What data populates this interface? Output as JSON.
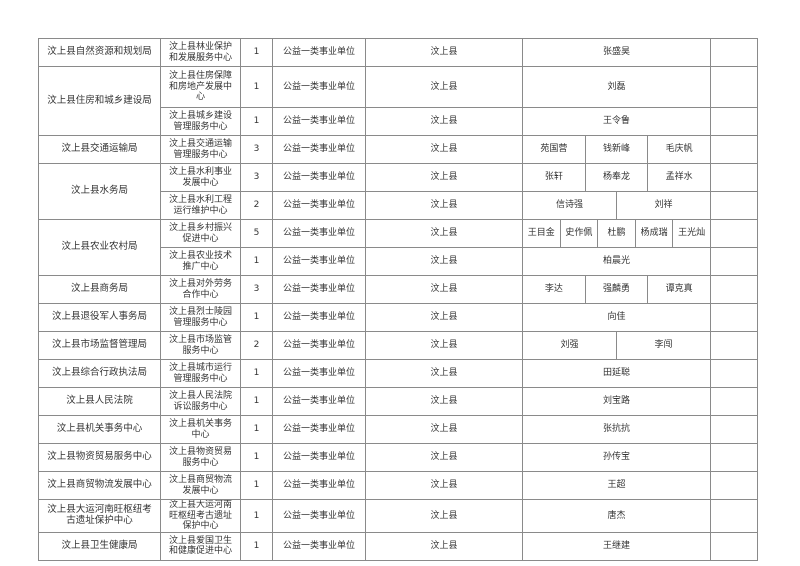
{
  "rows": [
    {
      "dept": "汶上县自然资源和规划局",
      "span": 1,
      "unit": "汶上县林业保护和发展服务中心",
      "count": "1",
      "type": "公益一类事业单位",
      "area": "汶上县",
      "names": [
        "张盛昊"
      ]
    },
    {
      "dept": "汶上县住房和城乡建设局",
      "span": 2,
      "unit": "汶上县住房保障和房地产发展中心",
      "count": "1",
      "type": "公益一类事业单位",
      "area": "汶上县",
      "names": [
        "刘磊"
      ],
      "tall": true
    },
    {
      "unit": "汶上县城乡建设管理服务中心",
      "count": "1",
      "type": "公益一类事业单位",
      "area": "汶上县",
      "names": [
        "王令鲁"
      ]
    },
    {
      "dept": "汶上县交通运输局",
      "span": 1,
      "unit": "汶上县交通运输管理服务中心",
      "count": "3",
      "type": "公益一类事业单位",
      "area": "汶上县",
      "names": [
        "苑国营",
        "钱新峰",
        "毛庆帆"
      ]
    },
    {
      "dept": "汶上县水务局",
      "span": 2,
      "unit": "汶上县水利事业发展中心",
      "count": "3",
      "type": "公益一类事业单位",
      "area": "汶上县",
      "names": [
        "张轩",
        "杨奉龙",
        "孟祥水"
      ]
    },
    {
      "unit": "汶上县水利工程运行维护中心",
      "count": "2",
      "type": "公益一类事业单位",
      "area": "汶上县",
      "names": [
        "信诗强",
        "刘祥"
      ]
    },
    {
      "dept": "汶上县农业农村局",
      "span": 2,
      "unit": "汶上县乡村振兴促进中心",
      "count": "5",
      "type": "公益一类事业单位",
      "area": "汶上县",
      "names": [
        "王目金",
        "史作佩",
        "杜鹏",
        "杨成瑞",
        "王光灿"
      ]
    },
    {
      "unit": "汶上县农业技术推广中心",
      "count": "1",
      "type": "公益一类事业单位",
      "area": "汶上县",
      "names": [
        "柏晨光"
      ]
    },
    {
      "dept": "汶上县商务局",
      "span": 1,
      "unit": "汶上县对外劳务合作中心",
      "count": "3",
      "type": "公益一类事业单位",
      "area": "汶上县",
      "names": [
        "李达",
        "强麟勇",
        "谭克真"
      ]
    },
    {
      "dept": "汶上县退役军人事务局",
      "span": 1,
      "unit": "汶上县烈士陵园管理服务中心",
      "count": "1",
      "type": "公益一类事业单位",
      "area": "汶上县",
      "names": [
        "向佳"
      ]
    },
    {
      "dept": "汶上县市场监督管理局",
      "span": 1,
      "unit": "汶上县市场监管服务中心",
      "count": "2",
      "type": "公益一类事业单位",
      "area": "汶上县",
      "names": [
        "刘强",
        "李闯"
      ]
    },
    {
      "dept": "汶上县综合行政执法局",
      "span": 1,
      "unit": "汶上县城市运行管理服务中心",
      "count": "1",
      "type": "公益一类事业单位",
      "area": "汶上县",
      "names": [
        "田延聪"
      ]
    },
    {
      "dept": "汶上县人民法院",
      "span": 1,
      "unit": "汶上县人民法院诉讼服务中心",
      "count": "1",
      "type": "公益一类事业单位",
      "area": "汶上县",
      "names": [
        "刘宝路"
      ]
    },
    {
      "dept": "汶上县机关事务中心",
      "span": 1,
      "unit": "汶上县机关事务中心",
      "count": "1",
      "type": "公益一类事业单位",
      "area": "汶上县",
      "names": [
        "张抗抗"
      ]
    },
    {
      "dept": "汶上县物资贸易服务中心",
      "span": 1,
      "unit": "汶上县物资贸易服务中心",
      "count": "1",
      "type": "公益一类事业单位",
      "area": "汶上县",
      "names": [
        "孙传宝"
      ]
    },
    {
      "dept": "汶上县商贸物流发展中心",
      "span": 1,
      "unit": "汶上县商贸物流发展中心",
      "count": "1",
      "type": "公益一类事业单位",
      "area": "汶上县",
      "names": [
        "王超"
      ]
    },
    {
      "dept": "汶上县大运河南旺枢纽考古遗址保护中心",
      "span": 1,
      "unit": "汶上县大运河南旺枢纽考古遗址保护中心",
      "count": "1",
      "type": "公益一类事业单位",
      "area": "汶上县",
      "names": [
        "唐杰"
      ]
    },
    {
      "dept": "汶上县卫生健康局",
      "span": 1,
      "unit": "汶上县爱国卫生和健康促进中心",
      "count": "1",
      "type": "公益一类事业单位",
      "area": "汶上县",
      "names": [
        "王继建"
      ]
    }
  ]
}
